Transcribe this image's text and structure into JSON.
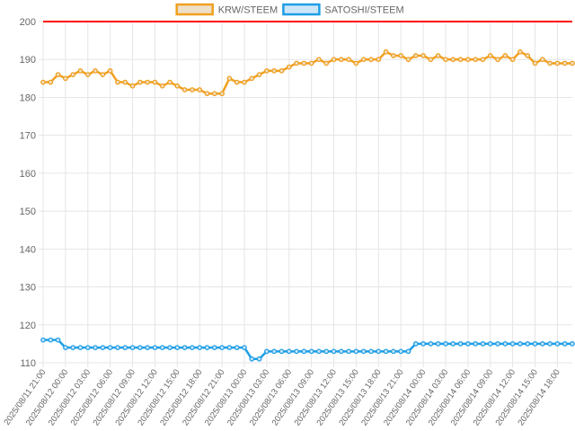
{
  "chart_data": {
    "type": "line",
    "legend_position": "top-center",
    "grid": true,
    "ylim": [
      110,
      200
    ],
    "yticks": [
      110,
      120,
      130,
      140,
      150,
      160,
      170,
      180,
      190,
      200
    ],
    "reference_line": {
      "value": 200,
      "color": "#ff0000"
    },
    "x_tick_labels": [
      "2025/08/11 21:00",
      "2025/08/12 00:00",
      "2025/08/12 03:00",
      "2025/08/12 06:00",
      "2025/08/12 09:00",
      "2025/08/12 12:00",
      "2025/08/12 15:00",
      "2025/08/12 18:00",
      "2025/08/12 21:00",
      "2025/08/13 00:00",
      "2025/08/13 03:00",
      "2025/08/13 06:00",
      "2025/08/13 09:00",
      "2025/08/13 12:00",
      "2025/08/13 15:00",
      "2025/08/13 18:00",
      "2025/08/13 21:00",
      "2025/08/14 00:00",
      "2025/08/14 03:00",
      "2025/08/14 06:00",
      "2025/08/14 09:00",
      "2025/08/14 12:00",
      "2025/08/14 15:00",
      "2025/08/14 18:00"
    ],
    "series": [
      {
        "name": "KRW/STEEM",
        "color": "#f0a020",
        "fill": "#eedfc7",
        "values": [
          184,
          184,
          186,
          185,
          186,
          187,
          186,
          187,
          186,
          187,
          184,
          184,
          183,
          184,
          184,
          184,
          183,
          184,
          183,
          182,
          182,
          182,
          181,
          181,
          181,
          185,
          184,
          184,
          185,
          186,
          187,
          187,
          187,
          188,
          189,
          189,
          189,
          190,
          189,
          190,
          190,
          190,
          189,
          190,
          190,
          190,
          192,
          191,
          191,
          190,
          191,
          191,
          190,
          191,
          190,
          190,
          190,
          190,
          190,
          190,
          191,
          190,
          191,
          190,
          192,
          191,
          189,
          190,
          189,
          189,
          189,
          189
        ]
      },
      {
        "name": "SATOSHI/STEEM",
        "color": "#1e9ee6",
        "fill": "#cde6f7",
        "values": [
          116,
          116,
          116,
          114,
          114,
          114,
          114,
          114,
          114,
          114,
          114,
          114,
          114,
          114,
          114,
          114,
          114,
          114,
          114,
          114,
          114,
          114,
          114,
          114,
          114,
          114,
          114,
          114,
          111,
          111,
          113,
          113,
          113,
          113,
          113,
          113,
          113,
          113,
          113,
          113,
          113,
          113,
          113,
          113,
          113,
          113,
          113,
          113,
          113,
          113,
          115,
          115,
          115,
          115,
          115,
          115,
          115,
          115,
          115,
          115,
          115,
          115,
          115,
          115,
          115,
          115,
          115,
          115,
          115,
          115,
          115,
          115
        ]
      }
    ]
  }
}
